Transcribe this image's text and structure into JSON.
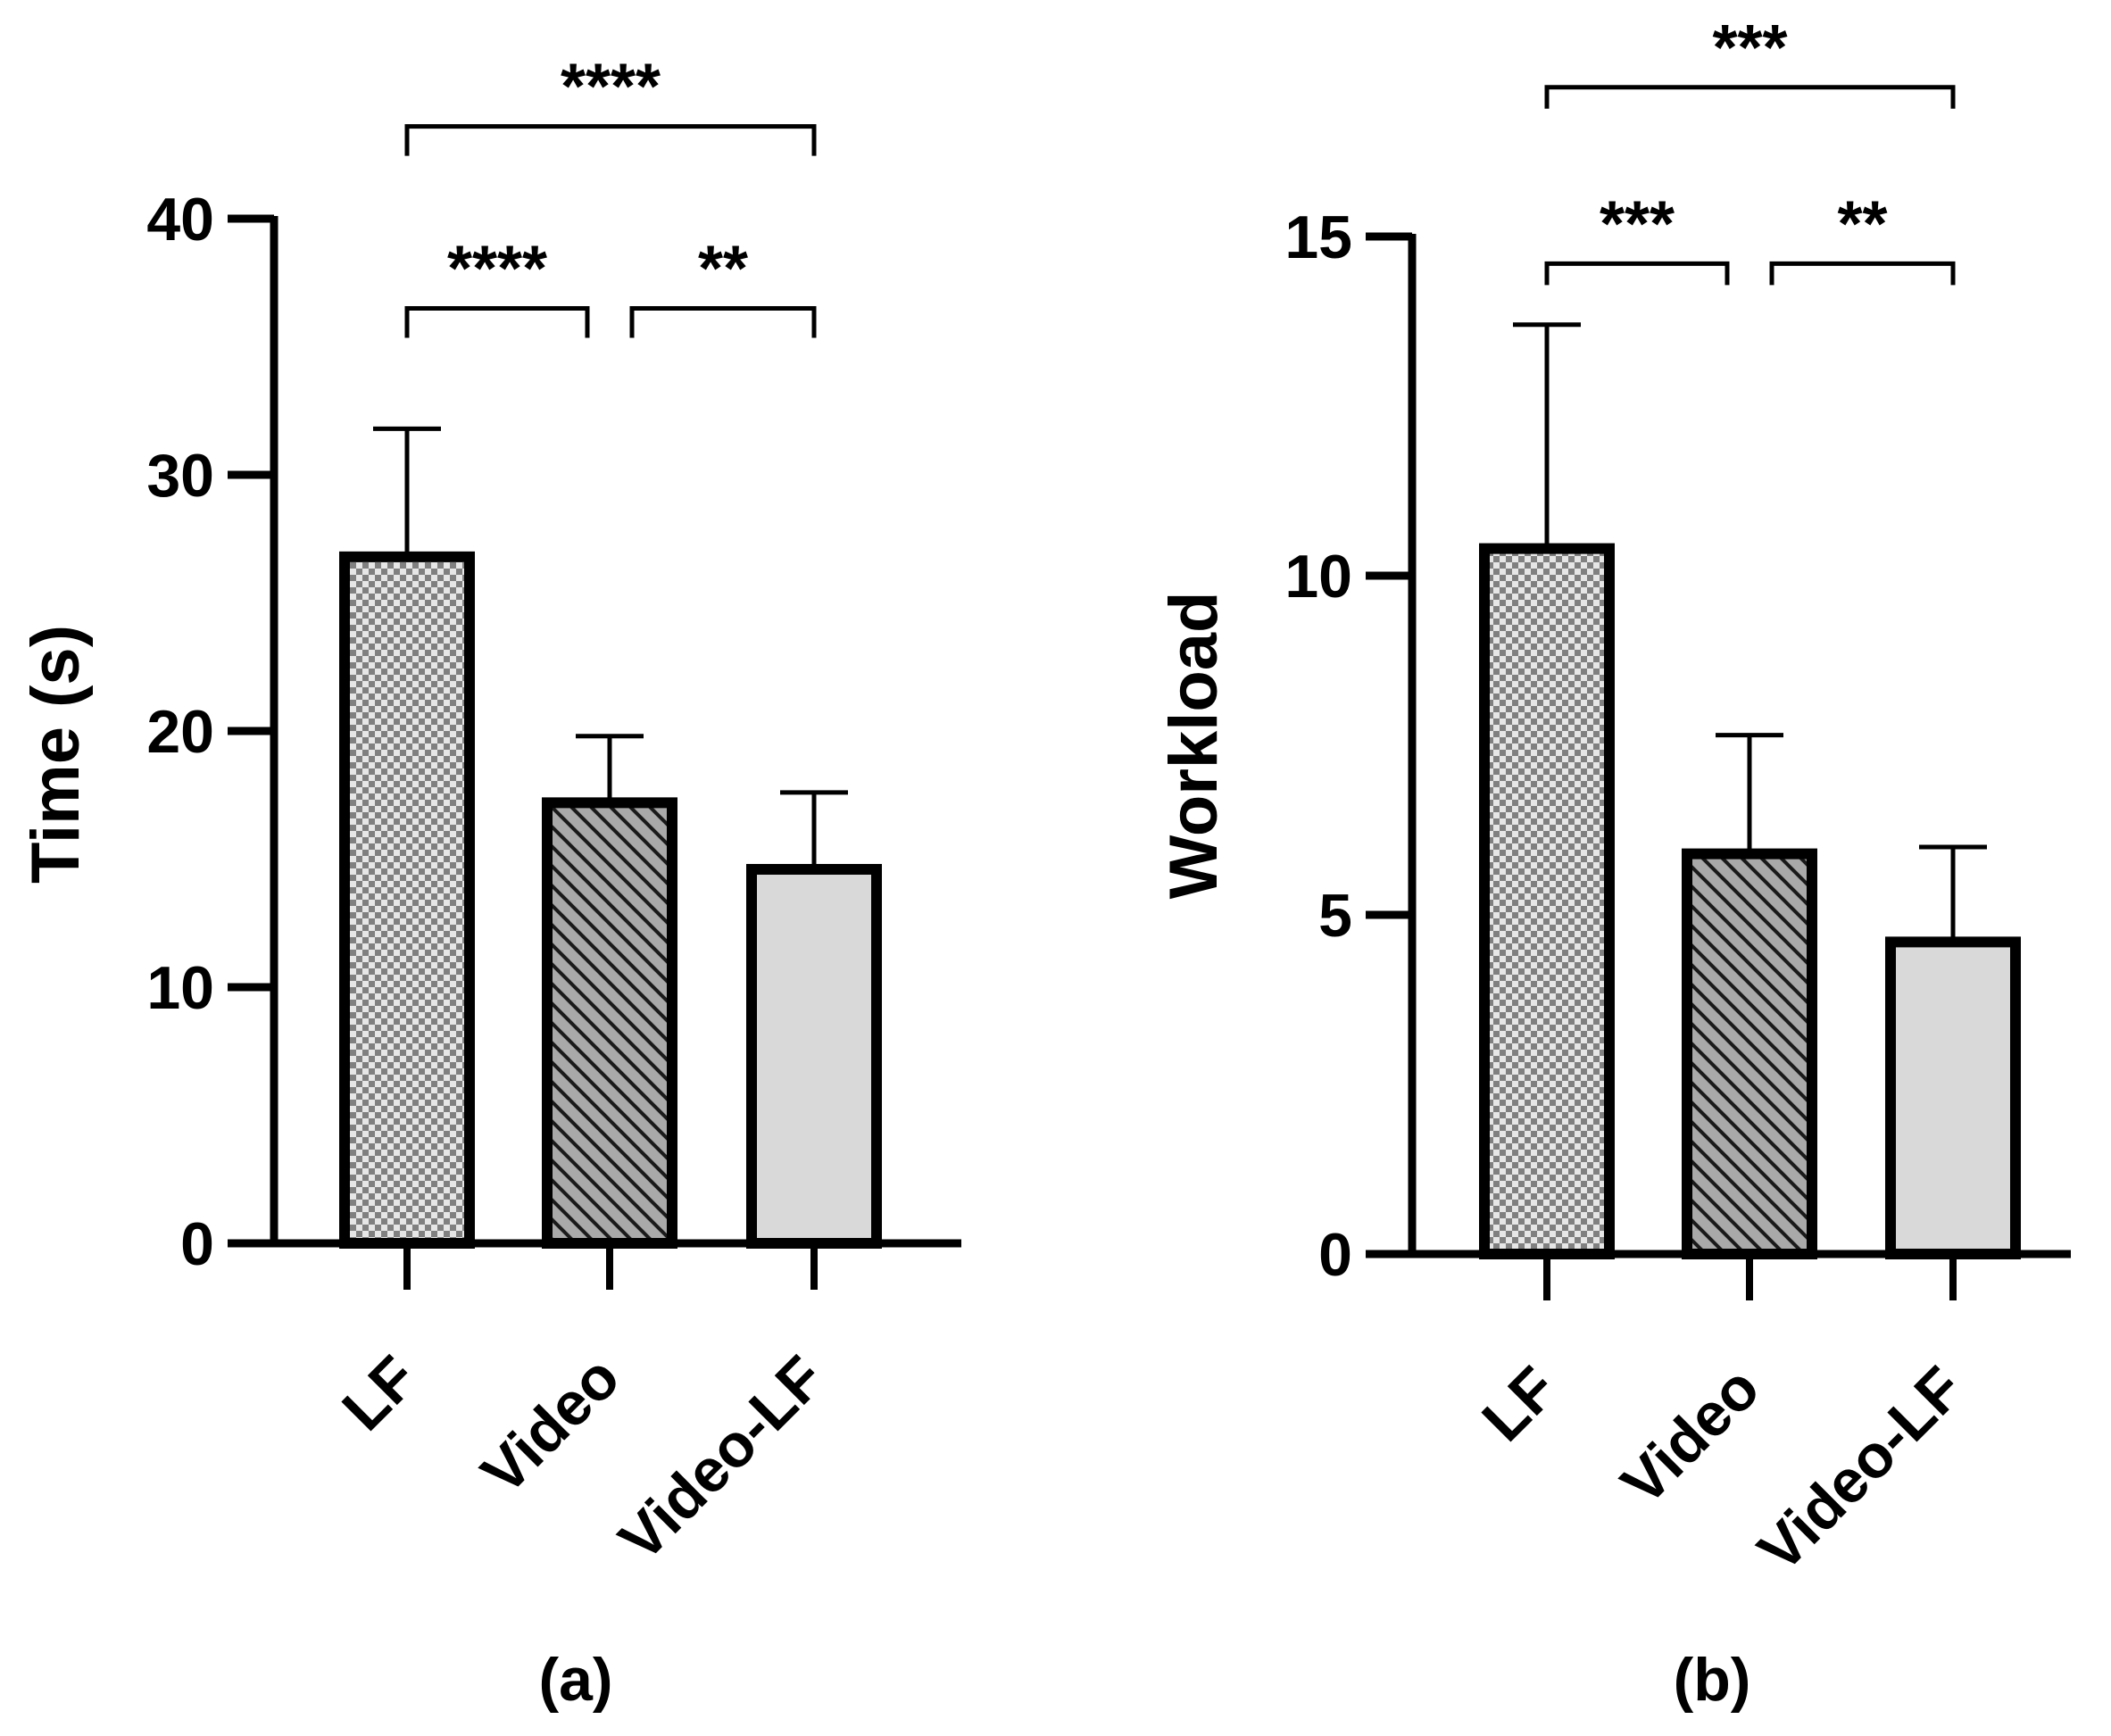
{
  "chart_data": [
    {
      "type": "bar",
      "panel_label": "(a)",
      "ylabel": "Time (s)",
      "xlabel": "",
      "ylim": [
        0,
        40
      ],
      "yticks": [
        0,
        10,
        20,
        30,
        40
      ],
      "categories": [
        "LF",
        "Video",
        "Video-LF"
      ],
      "values": [
        26.8,
        17.2,
        14.6
      ],
      "errors": [
        5.0,
        2.6,
        3.0
      ],
      "patterns": [
        "checker",
        "hatch",
        "solid"
      ],
      "significance": [
        {
          "from": 0,
          "to": 1,
          "label": "****",
          "y": 36.5
        },
        {
          "from": 1,
          "to": 2,
          "label": "**",
          "y": 36.5
        },
        {
          "from": 0,
          "to": 2,
          "label": "****",
          "y": 43.6
        }
      ]
    },
    {
      "type": "bar",
      "panel_label": "(b)",
      "ylabel": "Workload",
      "xlabel": "",
      "ylim": [
        0,
        15
      ],
      "yticks": [
        0,
        5,
        10,
        15
      ],
      "categories": [
        "LF",
        "Video",
        "Video-LF"
      ],
      "values": [
        10.4,
        5.9,
        4.6
      ],
      "errors": [
        3.3,
        1.75,
        1.4
      ],
      "patterns": [
        "checker",
        "hatch",
        "solid"
      ],
      "significance": [
        {
          "from": 0,
          "to": 1,
          "label": "***",
          "y": 14.6
        },
        {
          "from": 1,
          "to": 2,
          "label": "**",
          "y": 14.6
        },
        {
          "from": 0,
          "to": 2,
          "label": "***",
          "y": 17.2
        }
      ]
    }
  ],
  "colors": {
    "axis": "#000000",
    "checker_light": "#e6e6e6",
    "checker_dark": "#808080",
    "hatch_bg": "#a9a9a9",
    "solid_fill": "#d9d9d9"
  }
}
